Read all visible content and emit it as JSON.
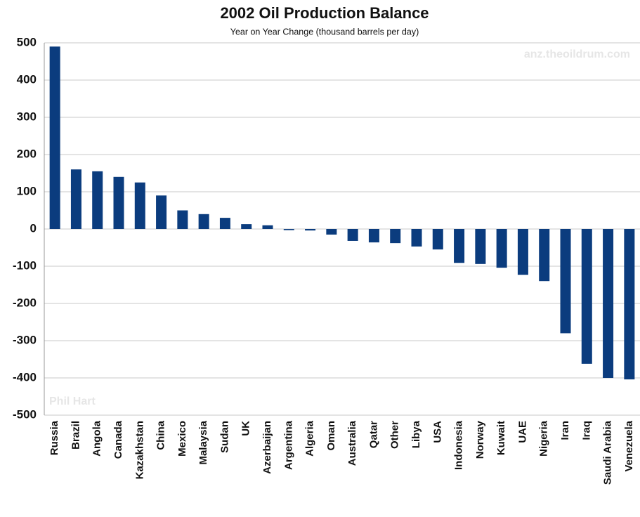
{
  "chart_data": {
    "type": "bar",
    "title": "2002 Oil Production Balance",
    "subtitle": "Year on Year Change (thousand barrels per day)",
    "annotations": [
      "anz.theoildrum.com",
      "Phil Hart"
    ],
    "categories": [
      "Russia",
      "Brazil",
      "Angola",
      "Canada",
      "Kazakhstan",
      "China",
      "Mexico",
      "Malaysia",
      "Sudan",
      "UK",
      "Azerbaijan",
      "Argentina",
      "Algeria",
      "Oman",
      "Australia",
      "Qatar",
      "Other",
      "Libya",
      "USA",
      "Indonesia",
      "Norway",
      "Kuwait",
      "UAE",
      "Nigeria",
      "Iran",
      "Iraq",
      "Saudi Arabia",
      "Venezuela"
    ],
    "values": [
      490,
      160,
      155,
      140,
      125,
      90,
      50,
      40,
      30,
      13,
      10,
      -3,
      -4,
      -15,
      -32,
      -36,
      -38,
      -47,
      -55,
      -91,
      -94,
      -104,
      -123,
      -140,
      -280,
      -362,
      -400,
      -404
    ],
    "color": "#0b3c7e",
    "ylim": [
      -500,
      500
    ],
    "yticks": [
      -500,
      -400,
      -300,
      -200,
      -100,
      0,
      100,
      200,
      300,
      400,
      500
    ],
    "grid": true
  }
}
